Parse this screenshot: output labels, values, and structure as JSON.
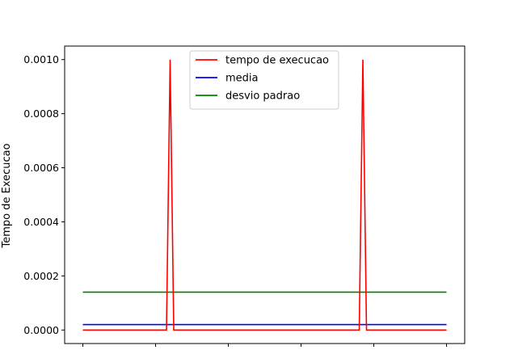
{
  "chart_data": {
    "type": "line",
    "title": "",
    "xlabel": "",
    "ylabel": "Tempo de Execucao",
    "xlim": [
      -0.25,
      5.25
    ],
    "ylim": [
      -5e-05,
      0.00105
    ],
    "y_ticks": [
      0.0,
      0.0002,
      0.0004,
      0.0006,
      0.0008,
      0.001
    ],
    "y_tick_labels": [
      "0.0000",
      "0.0002",
      "0.0004",
      "0.0006",
      "0.0008",
      "0.0010"
    ],
    "x_ticks": [
      0,
      1,
      2,
      3,
      4,
      5
    ],
    "x_tick_labels": [
      "",
      "",
      "",
      "",
      "",
      ""
    ],
    "grid": false,
    "legend_position": "upper center",
    "series": [
      {
        "name": "tempo de execucao",
        "color": "#ff0000",
        "x": [
          0.0,
          1.15,
          1.2,
          1.25,
          3.8,
          3.85,
          3.9,
          5.0
        ],
        "y": [
          0.0,
          0.0,
          0.001,
          0.0,
          0.0,
          0.001,
          0.0,
          0.0
        ]
      },
      {
        "name": "media",
        "color": "#0000ff",
        "x": [
          0.0,
          5.0
        ],
        "y": [
          2e-05,
          2e-05
        ]
      },
      {
        "name": "desvio padrao",
        "color": "#008000",
        "x": [
          0.0,
          5.0
        ],
        "y": [
          0.00014,
          0.00014
        ]
      }
    ]
  }
}
